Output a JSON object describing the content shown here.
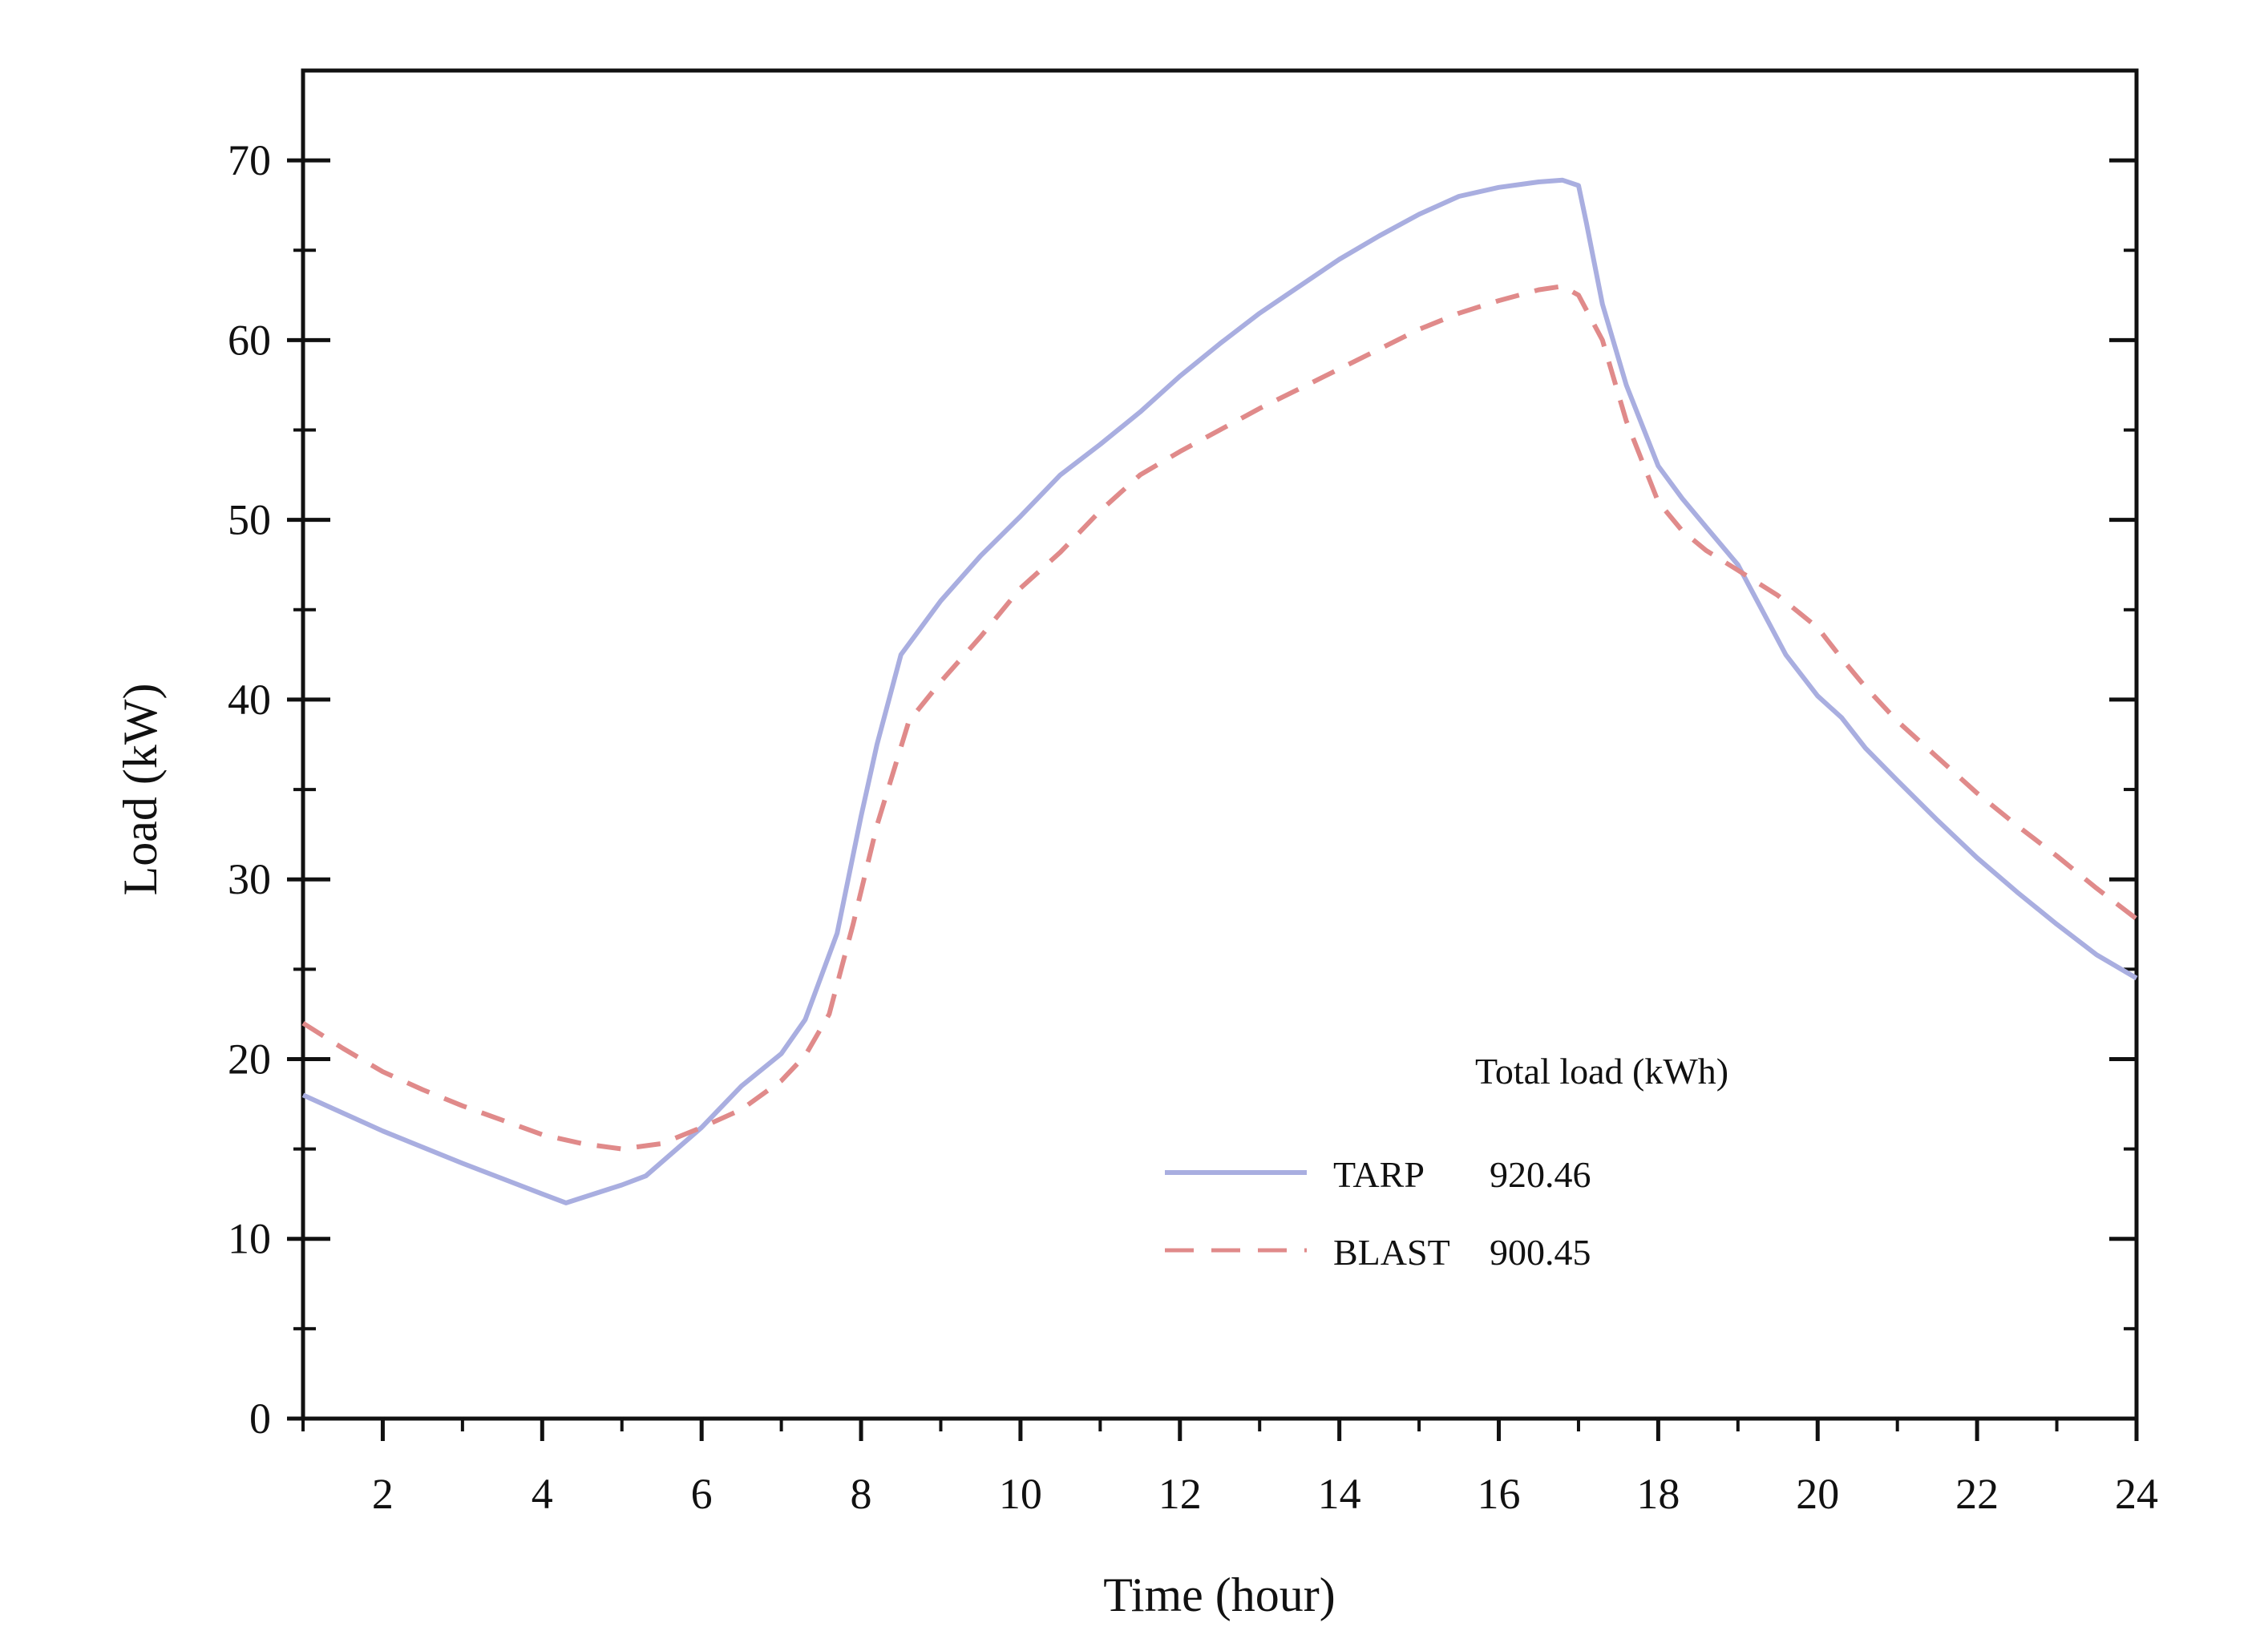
{
  "chart_data": {
    "type": "line",
    "xlabel": "Time (hour)",
    "ylabel": "Load (kW)",
    "xlim": [
      1,
      24
    ],
    "ylim": [
      0,
      75
    ],
    "x_ticks": [
      2,
      4,
      6,
      8,
      10,
      12,
      14,
      16,
      18,
      20,
      22,
      24
    ],
    "y_ticks": [
      0,
      10,
      20,
      30,
      40,
      50,
      60,
      70
    ],
    "legend": {
      "title": "Total  load (kWh)",
      "position": "lower-right"
    },
    "series": [
      {
        "name": "TARP",
        "total": "920.46",
        "color": "#a9aee0",
        "style": "solid",
        "x": [
          1,
          2,
          3,
          4,
          4.3,
          5,
          5.3,
          6,
          6.5,
          7,
          7.3,
          7.7,
          8,
          8.2,
          8.5,
          9,
          9.5,
          10,
          10.5,
          11,
          11.5,
          12,
          12.5,
          13,
          13.5,
          14,
          14.5,
          15,
          15.5,
          16,
          16.5,
          16.8,
          17,
          17.1,
          17.3,
          17.6,
          18,
          18.3,
          18.6,
          19,
          19.3,
          19.6,
          20,
          20.3,
          20.6,
          21,
          21.5,
          22,
          22.5,
          23,
          23.5,
          24
        ],
        "values": [
          18,
          16,
          14.2,
          12.5,
          12,
          13,
          13.5,
          16.2,
          18.5,
          20.3,
          22.2,
          27,
          33.5,
          37.5,
          42.5,
          45.5,
          48,
          50.2,
          52.5,
          54.2,
          56,
          58,
          59.8,
          61.5,
          63,
          64.5,
          65.8,
          67,
          68,
          68.5,
          68.8,
          68.9,
          68.6,
          66.5,
          62,
          57.5,
          53,
          51.2,
          49.6,
          47.5,
          45,
          42.5,
          40.2,
          39,
          37.3,
          35.5,
          33.3,
          31.2,
          29.3,
          27.5,
          25.8,
          24.5
        ]
      },
      {
        "name": "BLAST",
        "total": "900.45",
        "color": "#e08a8a",
        "style": "dashed",
        "x": [
          1,
          1.5,
          2,
          2.5,
          3,
          3.5,
          4,
          4.5,
          5,
          5.5,
          6,
          6.5,
          7,
          7.3,
          7.6,
          7.9,
          8.2,
          8.6,
          9,
          9.5,
          10,
          10.5,
          11,
          11.5,
          12,
          12.5,
          13,
          13.5,
          14,
          14.5,
          15,
          15.5,
          16,
          16.5,
          16.8,
          17,
          17.3,
          17.6,
          18,
          18.3,
          18.6,
          19,
          19.5,
          20,
          20.3,
          20.6,
          21,
          21.5,
          22,
          22.5,
          23,
          23.5,
          24
        ],
        "values": [
          22,
          20.6,
          19.3,
          18.3,
          17.4,
          16.6,
          15.8,
          15.3,
          15,
          15.3,
          16.2,
          17.2,
          18.8,
          20.2,
          22.5,
          27.5,
          33,
          38.8,
          41,
          43.5,
          46.2,
          48.2,
          50.5,
          52.5,
          53.8,
          55,
          56.2,
          57.3,
          58.4,
          59.5,
          60.6,
          61.5,
          62.2,
          62.8,
          63,
          62.5,
          60,
          55.5,
          51,
          49.4,
          48.3,
          47.2,
          45.8,
          44,
          42.3,
          40.7,
          38.8,
          36.8,
          34.8,
          33,
          31.3,
          29.5,
          27.8
        ]
      }
    ]
  }
}
